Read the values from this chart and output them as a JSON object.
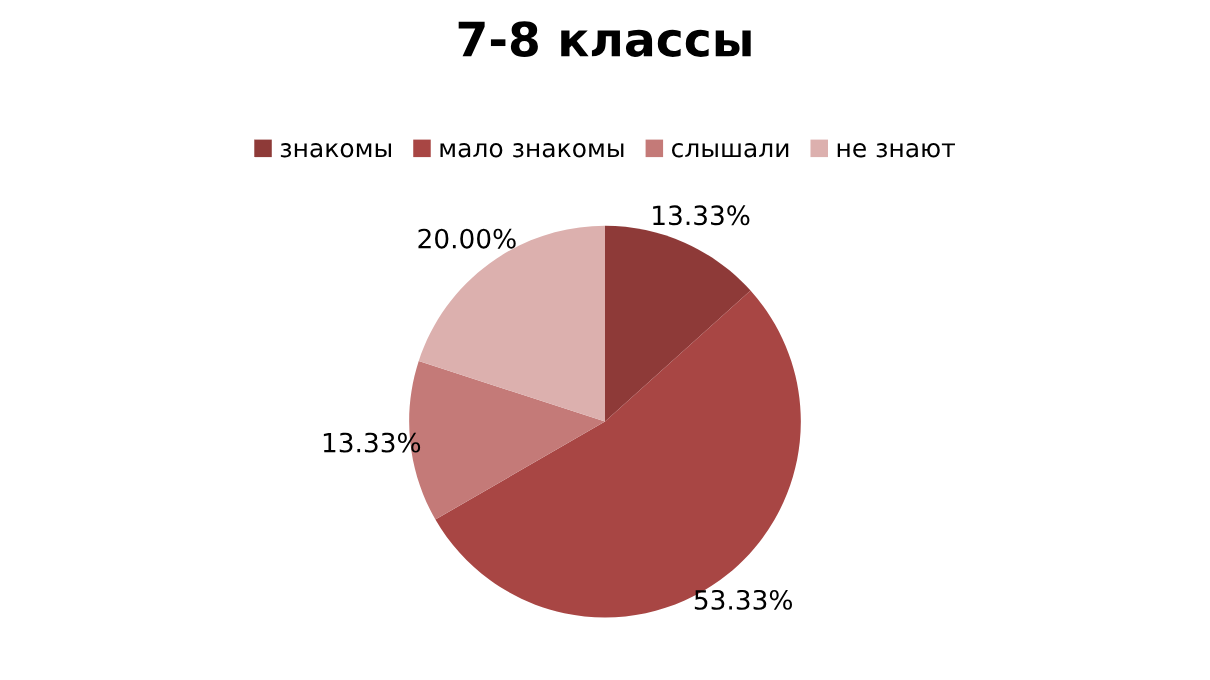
{
  "chart_data": {
    "type": "pie",
    "title": "7-8 классы",
    "categories": [
      "знакомы",
      "мало знакомы",
      "слышали",
      "не знают"
    ],
    "values": [
      13.33,
      53.33,
      13.33,
      20.0
    ],
    "value_labels": [
      "13.33%",
      "53.33%",
      "13.33%",
      "20.00%"
    ],
    "colors": [
      "#8e3a38",
      "#a84644",
      "#c47a78",
      "#dcb0ae"
    ],
    "legend": "top"
  }
}
